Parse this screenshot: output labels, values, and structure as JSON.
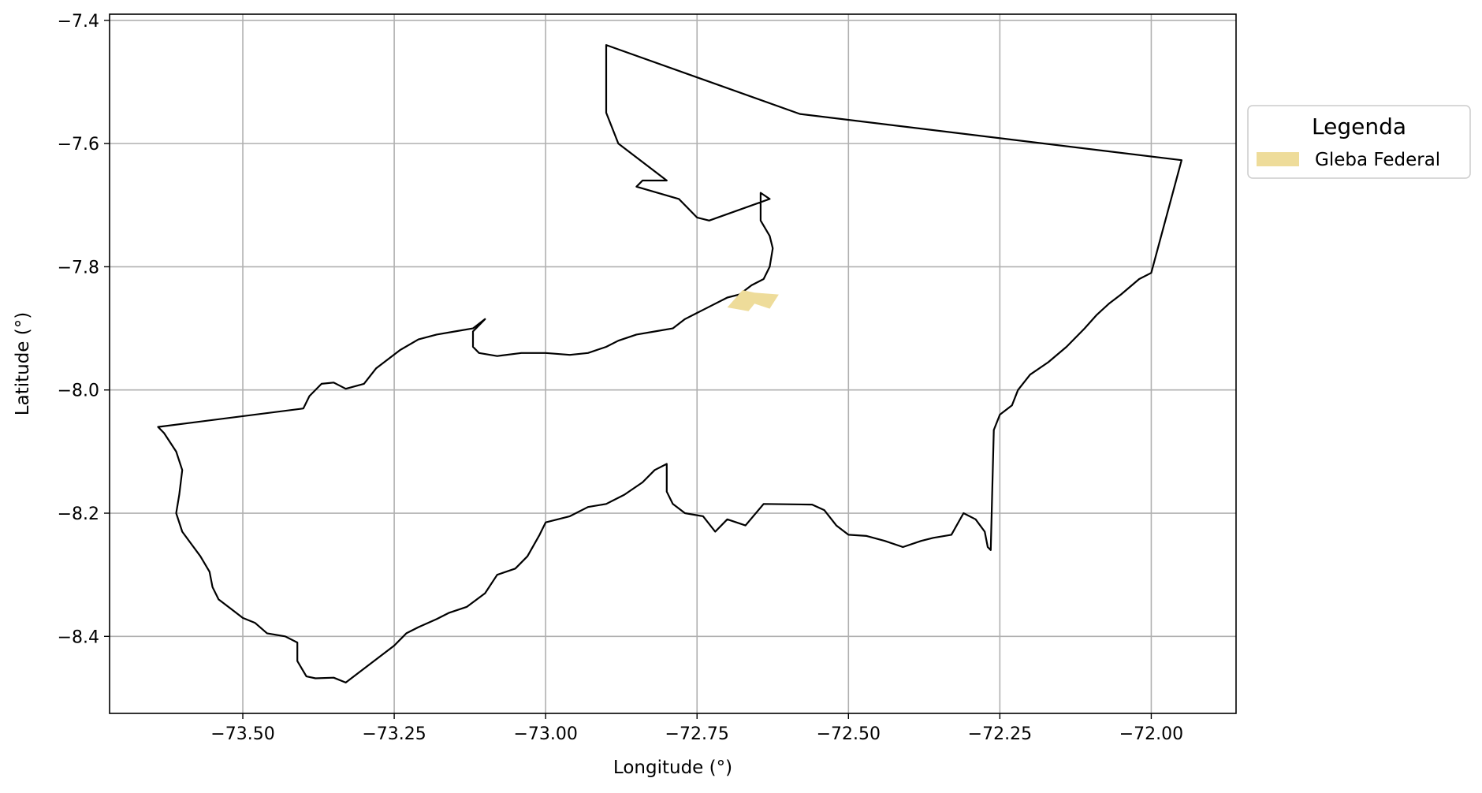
{
  "map": {
    "type": "map",
    "xlabel": "Longitude (°)",
    "ylabel": "Latitude (°)",
    "xlim": [
      -73.72,
      -71.86
    ],
    "ylim": [
      -8.525,
      -7.39
    ],
    "grid": true,
    "x_ticks": [
      -73.5,
      -73.25,
      -73.0,
      -72.75,
      -72.5,
      -72.25,
      -72.0
    ],
    "x_tick_labels": [
      "−73.50",
      "−73.25",
      "−73.00",
      "−72.75",
      "−72.50",
      "−72.25",
      "−72.00"
    ],
    "y_ticks": [
      -7.4,
      -7.6,
      -7.8,
      -8.0,
      -8.2,
      -8.4
    ],
    "y_tick_labels": [
      "−7.4",
      "−7.6",
      "−7.8",
      "−8.0",
      "−8.2",
      "−8.4"
    ],
    "legend": {
      "title": "Legenda",
      "placement": "right-outside-top",
      "entries": [
        {
          "label": "Gleba Federal",
          "color": "#eedc9a"
        }
      ]
    },
    "boundary": {
      "color": "#000000",
      "coordinates": [
        [
          -72.9,
          -7.44
        ],
        [
          -72.58,
          -7.552
        ],
        [
          -71.95,
          -7.627
        ],
        [
          -72.0,
          -7.81
        ],
        [
          -72.02,
          -7.82
        ],
        [
          -72.05,
          -7.845
        ],
        [
          -72.07,
          -7.86
        ],
        [
          -72.09,
          -7.878
        ],
        [
          -72.11,
          -7.9
        ],
        [
          -72.14,
          -7.93
        ],
        [
          -72.17,
          -7.955
        ],
        [
          -72.2,
          -7.975
        ],
        [
          -72.22,
          -8.0
        ],
        [
          -72.23,
          -8.025
        ],
        [
          -72.25,
          -8.04
        ],
        [
          -72.26,
          -8.065
        ],
        [
          -72.265,
          -8.26
        ],
        [
          -72.27,
          -8.255
        ],
        [
          -72.275,
          -8.23
        ],
        [
          -72.29,
          -8.21
        ],
        [
          -72.31,
          -8.2
        ],
        [
          -72.33,
          -8.235
        ],
        [
          -72.36,
          -8.24
        ],
        [
          -72.38,
          -8.245
        ],
        [
          -72.41,
          -8.255
        ],
        [
          -72.44,
          -8.245
        ],
        [
          -72.47,
          -8.237
        ],
        [
          -72.5,
          -8.235
        ],
        [
          -72.52,
          -8.22
        ],
        [
          -72.54,
          -8.195
        ],
        [
          -72.56,
          -8.186
        ],
        [
          -72.64,
          -8.185
        ],
        [
          -72.67,
          -8.22
        ],
        [
          -72.7,
          -8.21
        ],
        [
          -72.72,
          -8.23
        ],
        [
          -72.74,
          -8.205
        ],
        [
          -72.77,
          -8.2
        ],
        [
          -72.79,
          -8.185
        ],
        [
          -72.8,
          -8.165
        ],
        [
          -72.8,
          -8.12
        ],
        [
          -72.82,
          -8.13
        ],
        [
          -72.84,
          -8.15
        ],
        [
          -72.87,
          -8.17
        ],
        [
          -72.9,
          -8.185
        ],
        [
          -72.93,
          -8.19
        ],
        [
          -72.96,
          -8.205
        ],
        [
          -73.0,
          -8.215
        ],
        [
          -73.01,
          -8.235
        ],
        [
          -73.03,
          -8.27
        ],
        [
          -73.05,
          -8.29
        ],
        [
          -73.08,
          -8.3
        ],
        [
          -73.1,
          -8.33
        ],
        [
          -73.13,
          -8.352
        ],
        [
          -73.16,
          -8.362
        ],
        [
          -73.18,
          -8.372
        ],
        [
          -73.21,
          -8.385
        ],
        [
          -73.23,
          -8.395
        ],
        [
          -73.25,
          -8.415
        ],
        [
          -73.33,
          -8.475
        ],
        [
          -73.35,
          -8.467
        ],
        [
          -73.38,
          -8.468
        ],
        [
          -73.395,
          -8.465
        ],
        [
          -73.41,
          -8.44
        ],
        [
          -73.41,
          -8.41
        ],
        [
          -73.43,
          -8.4
        ],
        [
          -73.46,
          -8.395
        ],
        [
          -73.48,
          -8.378
        ],
        [
          -73.5,
          -8.37
        ],
        [
          -73.52,
          -8.355
        ],
        [
          -73.54,
          -8.34
        ],
        [
          -73.55,
          -8.32
        ],
        [
          -73.555,
          -8.295
        ],
        [
          -73.57,
          -8.27
        ],
        [
          -73.585,
          -8.25
        ],
        [
          -73.6,
          -8.23
        ],
        [
          -73.61,
          -8.2
        ],
        [
          -73.605,
          -8.17
        ],
        [
          -73.6,
          -8.13
        ],
        [
          -73.61,
          -8.1
        ],
        [
          -73.63,
          -8.07
        ],
        [
          -73.64,
          -8.06
        ],
        [
          -73.4,
          -8.03
        ],
        [
          -73.39,
          -8.01
        ],
        [
          -73.37,
          -7.99
        ],
        [
          -73.35,
          -7.988
        ],
        [
          -73.33,
          -7.998
        ],
        [
          -73.3,
          -7.99
        ],
        [
          -73.28,
          -7.965
        ],
        [
          -73.26,
          -7.95
        ],
        [
          -73.24,
          -7.935
        ],
        [
          -73.21,
          -7.918
        ],
        [
          -73.18,
          -7.91
        ],
        [
          -73.15,
          -7.905
        ],
        [
          -73.12,
          -7.9
        ],
        [
          -73.1,
          -7.885
        ],
        [
          -73.12,
          -7.905
        ],
        [
          -73.12,
          -7.93
        ],
        [
          -73.11,
          -7.94
        ],
        [
          -73.08,
          -7.945
        ],
        [
          -73.04,
          -7.94
        ],
        [
          -73.0,
          -7.94
        ],
        [
          -72.96,
          -7.943
        ],
        [
          -72.93,
          -7.94
        ],
        [
          -72.9,
          -7.93
        ],
        [
          -72.88,
          -7.92
        ],
        [
          -72.85,
          -7.91
        ],
        [
          -72.82,
          -7.905
        ],
        [
          -72.79,
          -7.9
        ],
        [
          -72.77,
          -7.885
        ],
        [
          -72.75,
          -7.875
        ],
        [
          -72.73,
          -7.865
        ],
        [
          -72.7,
          -7.85
        ],
        [
          -72.68,
          -7.845
        ],
        [
          -72.66,
          -7.83
        ],
        [
          -72.64,
          -7.82
        ],
        [
          -72.63,
          -7.8
        ],
        [
          -72.625,
          -7.77
        ],
        [
          -72.63,
          -7.75
        ],
        [
          -72.645,
          -7.725
        ],
        [
          -72.645,
          -7.68
        ],
        [
          -72.63,
          -7.69
        ],
        [
          -72.73,
          -7.725
        ],
        [
          -72.75,
          -7.72
        ],
        [
          -72.78,
          -7.69
        ],
        [
          -72.85,
          -7.67
        ],
        [
          -72.84,
          -7.66
        ],
        [
          -72.8,
          -7.66
        ],
        [
          -72.88,
          -7.6
        ],
        [
          -72.9,
          -7.55
        ]
      ]
    },
    "gleba_federal": {
      "color": "#eedc9a",
      "coordinates": [
        [
          -72.7,
          -7.866
        ],
        [
          -72.665,
          -7.872
        ],
        [
          -72.655,
          -7.86
        ],
        [
          -72.63,
          -7.868
        ],
        [
          -72.615,
          -7.845
        ],
        [
          -72.655,
          -7.842
        ],
        [
          -72.675,
          -7.838
        ]
      ]
    }
  }
}
